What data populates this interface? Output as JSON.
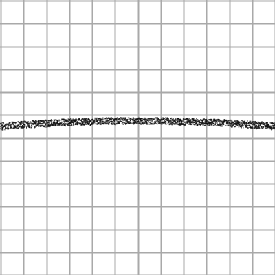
{
  "canvas": {
    "background_color": "#ffffff",
    "grid_color": "#a9a9a9",
    "stroke_color": "#111111",
    "grid_visible": true
  },
  "drawing": {
    "stroke_count": 1,
    "stroke_style": "rough pencil/crayon",
    "stroke_shape": "nearly horizontal gentle arc across full width"
  }
}
